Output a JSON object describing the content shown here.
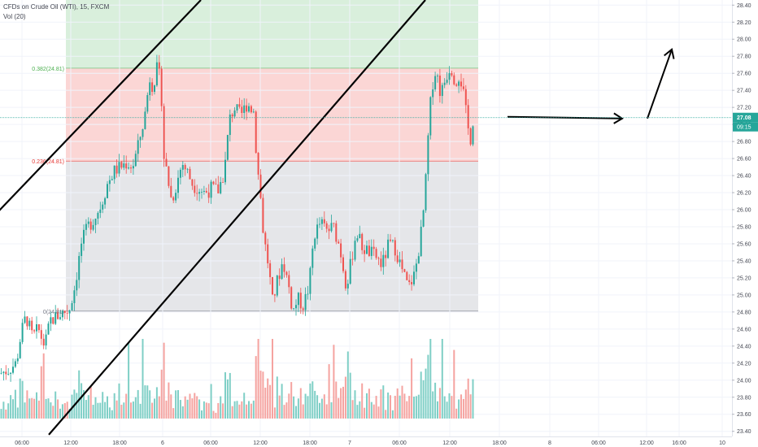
{
  "header": {
    "symbol_line": "CFDs on Crude Oil (WTI), 15, FXCM",
    "volume_line": "Vol (20)"
  },
  "colors": {
    "up": "#26a69a",
    "down": "#ef5350",
    "fib_green": "#d9efdc",
    "fib_red": "#fbd6d5",
    "fib_gray": "#e5e6e9",
    "price_line": "#26a69a"
  },
  "chart_data": {
    "type": "candlestick",
    "y_axis": {
      "ylim": [
        23.34,
        28.46
      ],
      "ticks": [
        "28.40",
        "28.20",
        "28.00",
        "27.80",
        "27.60",
        "27.40",
        "27.20",
        "27.00",
        "26.80",
        "26.60",
        "26.40",
        "26.20",
        "26.00",
        "25.80",
        "25.60",
        "25.40",
        "25.20",
        "25.00",
        "24.80",
        "24.60",
        "24.40",
        "24.20",
        "24.00",
        "23.80",
        "23.60",
        "23.40"
      ]
    },
    "x_axis": {
      "range": [
        0,
        900
      ],
      "ticks": [
        {
          "t": 27,
          "label": "06:00"
        },
        {
          "t": 87,
          "label": "12:00"
        },
        {
          "t": 147,
          "label": "18:00"
        },
        {
          "t": 200,
          "label": "6"
        },
        {
          "t": 259,
          "label": "06:00"
        },
        {
          "t": 320,
          "label": "12:00"
        },
        {
          "t": 381,
          "label": "18:00"
        },
        {
          "t": 430,
          "label": "7"
        },
        {
          "t": 491,
          "label": "06:00"
        },
        {
          "t": 553,
          "label": "12:00"
        },
        {
          "t": 614,
          "label": "18:00"
        },
        {
          "t": 676,
          "label": "8"
        },
        {
          "t": 736,
          "label": "06:00"
        },
        {
          "t": 795,
          "label": "12:00"
        },
        {
          "t": 835,
          "label": "16:00"
        },
        {
          "t": 888,
          "label": "10"
        }
      ]
    },
    "last_price": {
      "value": 27.08,
      "label": "27.08",
      "countdown": "09:15"
    },
    "fib_levels": [
      {
        "label": "0.382(24.81)",
        "price": 27.66
      },
      {
        "label": "0.236(24.81)",
        "price": 26.57
      },
      {
        "label": "0(24.81)",
        "price": 24.81
      }
    ],
    "fib_zone": {
      "t_start": 81,
      "t_end": 588,
      "top": 28.46
    },
    "trend_lines": [
      {
        "points": [
          [
            -5,
            25.95
          ],
          [
            247,
            28.46
          ]
        ]
      },
      {
        "points": [
          [
            60,
            23.36
          ],
          [
            523,
            28.46
          ]
        ]
      }
    ],
    "annotations": [
      {
        "type": "arrow",
        "points": [
          [
            624,
            27.09
          ],
          [
            765,
            27.07
          ]
        ]
      },
      {
        "type": "arrow",
        "points": [
          [
            796,
            27.07
          ],
          [
            826,
            27.88
          ]
        ]
      }
    ],
    "price_anchors": [
      [
        0,
        24.08
      ],
      [
        10,
        24.12
      ],
      [
        20,
        24.2
      ],
      [
        26,
        24.55
      ],
      [
        32,
        24.75
      ],
      [
        40,
        24.5
      ],
      [
        47,
        24.6
      ],
      [
        55,
        24.4
      ],
      [
        62,
        24.7
      ],
      [
        70,
        24.75
      ],
      [
        78,
        24.8
      ],
      [
        85,
        24.82
      ],
      [
        92,
        25.1
      ],
      [
        100,
        25.6
      ],
      [
        108,
        25.8
      ],
      [
        116,
        25.9
      ],
      [
        124,
        26.05
      ],
      [
        132,
        26.3
      ],
      [
        140,
        26.45
      ],
      [
        148,
        26.5
      ],
      [
        156,
        26.55
      ],
      [
        163,
        26.5
      ],
      [
        170,
        26.75
      ],
      [
        178,
        27.1
      ],
      [
        184,
        27.55
      ],
      [
        188,
        27.45
      ],
      [
        193,
        27.65
      ],
      [
        198,
        27.5
      ],
      [
        201,
        26.65
      ],
      [
        205,
        26.45
      ],
      [
        211,
        26.1
      ],
      [
        217,
        26.3
      ],
      [
        224,
        26.55
      ],
      [
        230,
        26.45
      ],
      [
        237,
        26.3
      ],
      [
        244,
        26.25
      ],
      [
        252,
        26.2
      ],
      [
        260,
        26.25
      ],
      [
        268,
        26.22
      ],
      [
        276,
        26.45
      ],
      [
        282,
        27.05
      ],
      [
        288,
        27.2
      ],
      [
        296,
        27.1
      ],
      [
        304,
        27.25
      ],
      [
        312,
        27.15
      ],
      [
        316,
        26.55
      ],
      [
        320,
        26.2
      ],
      [
        324,
        25.7
      ],
      [
        330,
        25.35
      ],
      [
        335,
        24.92
      ],
      [
        342,
        25.2
      ],
      [
        348,
        25.4
      ],
      [
        355,
        25.1
      ],
      [
        360,
        24.8
      ],
      [
        366,
        24.95
      ],
      [
        373,
        24.88
      ],
      [
        380,
        25.1
      ],
      [
        386,
        25.7
      ],
      [
        394,
        25.85
      ],
      [
        402,
        25.75
      ],
      [
        410,
        25.8
      ],
      [
        418,
        25.55
      ],
      [
        426,
        25.1
      ],
      [
        432,
        25.4
      ],
      [
        438,
        25.75
      ],
      [
        446,
        25.55
      ],
      [
        454,
        25.5
      ],
      [
        462,
        25.45
      ],
      [
        470,
        25.35
      ],
      [
        478,
        25.6
      ],
      [
        486,
        25.55
      ],
      [
        494,
        25.3
      ],
      [
        502,
        25.08
      ],
      [
        510,
        25.25
      ],
      [
        516,
        25.6
      ],
      [
        520,
        25.9
      ],
      [
        524,
        26.4
      ],
      [
        527,
        26.95
      ],
      [
        531,
        27.45
      ],
      [
        536,
        27.65
      ],
      [
        542,
        27.35
      ],
      [
        548,
        27.55
      ],
      [
        554,
        27.7
      ],
      [
        560,
        27.5
      ],
      [
        565,
        27.6
      ],
      [
        570,
        27.35
      ],
      [
        574,
        27.05
      ],
      [
        578,
        26.8
      ],
      [
        582,
        27.08
      ]
    ]
  }
}
